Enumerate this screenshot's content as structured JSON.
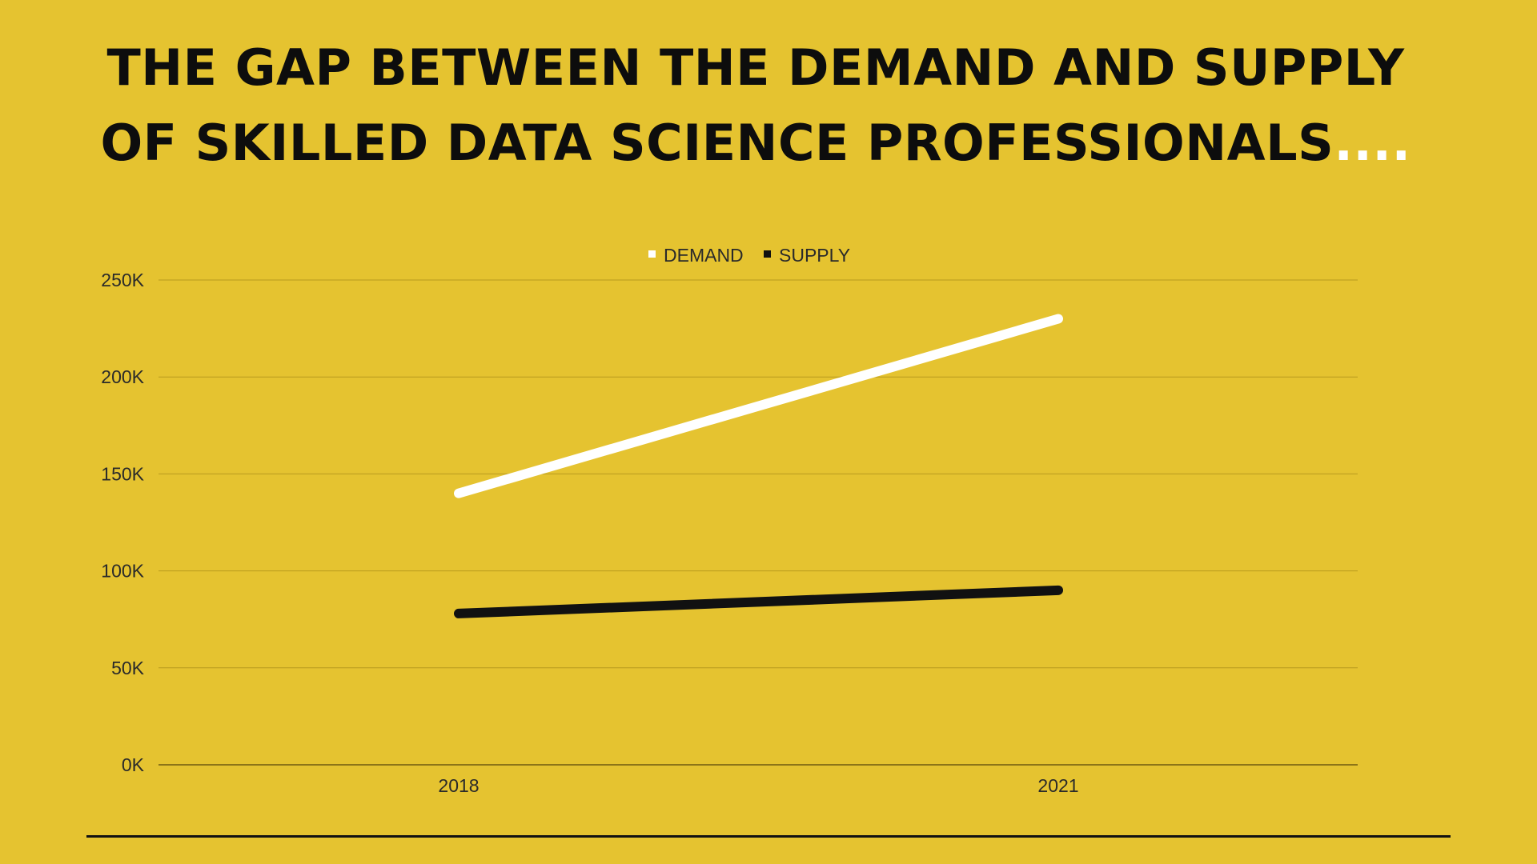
{
  "title": {
    "line1": "THE GAP BETWEEN THE DEMAND AND SUPPLY",
    "line2": "OF SKILLED DATA SCIENCE PROFESSIONALS",
    "ellipsis": "...."
  },
  "colors": {
    "background": "#E5C330",
    "demand": "#FFFFFF",
    "supply": "#111111",
    "grid": "#B89A1E",
    "title": "#0D0D0D"
  },
  "chart_data": {
    "type": "line",
    "title": "THE GAP BETWEEN THE DEMAND AND SUPPLY OF SKILLED DATA SCIENCE PROFESSIONALS....",
    "categories": [
      "2018",
      "2021"
    ],
    "series": [
      {
        "name": "DEMAND",
        "values": [
          140000,
          230000
        ],
        "color": "#FFFFFF"
      },
      {
        "name": "SUPPLY",
        "values": [
          78000,
          90000
        ],
        "color": "#111111"
      }
    ],
    "ylim": [
      0,
      250000
    ],
    "yticks": [
      {
        "value": 250000,
        "label": "250K"
      },
      {
        "value": 200000,
        "label": "200K"
      },
      {
        "value": 150000,
        "label": "150K"
      },
      {
        "value": 100000,
        "label": "100K"
      },
      {
        "value": 50000,
        "label": "50K"
      },
      {
        "value": 0,
        "label": "0K"
      }
    ],
    "grid": true,
    "legend_position": "top-center"
  }
}
